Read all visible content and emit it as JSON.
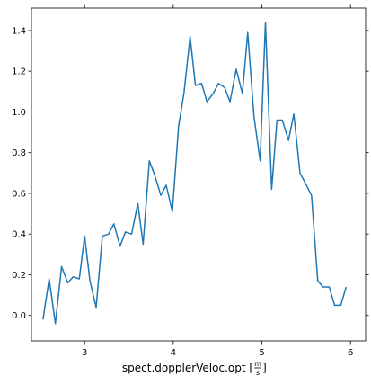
{
  "chart_data": {
    "type": "line",
    "title": "",
    "xlabel": "spect.dopplerVeloc.opt [m/s]",
    "xlabel_main": "spect.dopplerVeloc.opt",
    "xlabel_unit_num": "m",
    "xlabel_unit_den": "s",
    "ylabel": "",
    "xlim": [
      2.4,
      6.17
    ],
    "ylim": [
      -0.125,
      1.51
    ],
    "xticks": [
      3,
      4,
      5,
      6
    ],
    "yticks": [
      0.0,
      0.2,
      0.4,
      0.6,
      0.8,
      1.0,
      1.2,
      1.4
    ],
    "xtick_labels": [
      "3",
      "4",
      "5",
      "6"
    ],
    "ytick_labels": [
      "0.0",
      "0.2",
      "0.4",
      "0.6",
      "0.8",
      "1.0",
      "1.2",
      "1.4"
    ],
    "grid": false,
    "line_color": "#1f77b4",
    "series": [
      {
        "x": [
          2.53,
          2.6,
          2.67,
          2.74,
          2.81,
          2.87,
          2.94,
          3.0,
          3.06,
          3.13,
          3.2,
          3.27,
          3.33,
          3.4,
          3.46,
          3.53,
          3.6,
          3.66,
          3.73,
          3.79,
          3.86,
          3.92,
          3.99,
          4.06,
          4.12,
          4.19,
          4.25,
          4.32,
          4.38,
          4.45,
          4.51,
          4.58,
          4.64,
          4.71,
          4.78,
          4.84,
          4.91,
          4.98,
          5.04,
          5.11,
          5.17,
          5.23,
          5.3,
          5.36,
          5.43,
          5.49,
          5.56,
          5.63,
          5.69,
          5.76,
          5.82,
          5.89,
          5.95
        ],
        "y": [
          -0.02,
          0.18,
          -0.04,
          0.24,
          0.16,
          0.19,
          0.18,
          0.39,
          0.17,
          0.04,
          0.39,
          0.4,
          0.45,
          0.34,
          0.41,
          0.4,
          0.55,
          0.35,
          0.76,
          0.69,
          0.59,
          0.64,
          0.51,
          0.93,
          1.09,
          1.37,
          1.13,
          1.14,
          1.05,
          1.09,
          1.14,
          1.12,
          1.05,
          1.21,
          1.09,
          1.39,
          0.98,
          0.76,
          1.44,
          0.62,
          0.96,
          0.96,
          0.86,
          0.99,
          0.7,
          0.65,
          0.59,
          0.17,
          0.14,
          0.14,
          0.05,
          0.05,
          0.14
        ]
      }
    ]
  }
}
